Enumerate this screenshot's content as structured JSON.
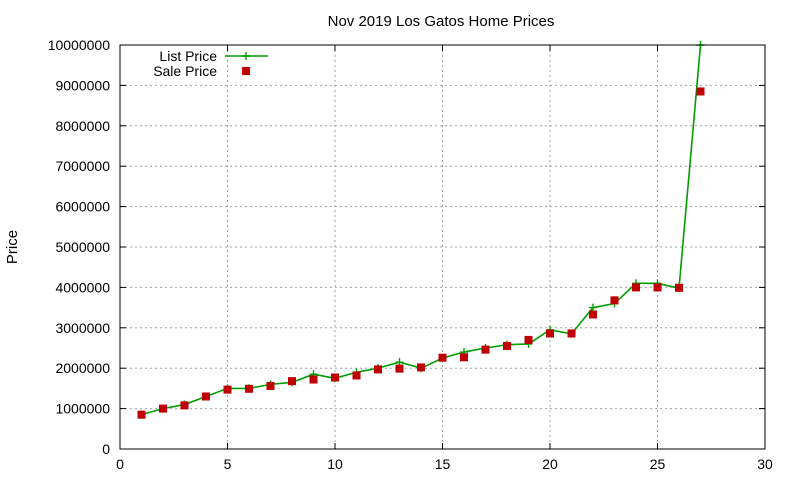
{
  "chart_data": {
    "type": "line",
    "title": "Nov 2019 Los Gatos Home Prices",
    "xlabel": "",
    "ylabel": "Price",
    "xlim": [
      0,
      30
    ],
    "ylim": [
      0,
      10000000
    ],
    "xticks": [
      0,
      5,
      10,
      15,
      20,
      25,
      30
    ],
    "yticks": [
      0,
      1000000,
      2000000,
      3000000,
      4000000,
      5000000,
      6000000,
      7000000,
      8000000,
      9000000,
      10000000
    ],
    "grid": true,
    "legend_position": "top-left",
    "series": [
      {
        "name": "List Price",
        "style": "line-plus",
        "color": "#009e00",
        "x": [
          1,
          2,
          3,
          4,
          5,
          6,
          7,
          8,
          9,
          10,
          11,
          12,
          13,
          14,
          15,
          16,
          17,
          18,
          19,
          20,
          21,
          22,
          23,
          24,
          25,
          26,
          27
        ],
        "values": [
          850000,
          1000000,
          1100000,
          1300000,
          1500000,
          1500000,
          1600000,
          1650000,
          1850000,
          1750000,
          1900000,
          2000000,
          2150000,
          2000000,
          2250000,
          2400000,
          2500000,
          2580000,
          2600000,
          2950000,
          2850000,
          3500000,
          3600000,
          4100000,
          4100000,
          3980000,
          10000000
        ]
      },
      {
        "name": "Sale Price",
        "style": "square",
        "color": "#c00000",
        "x": [
          1,
          2,
          3,
          4,
          5,
          6,
          7,
          8,
          9,
          10,
          11,
          12,
          13,
          14,
          15,
          16,
          17,
          18,
          19,
          20,
          21,
          22,
          23,
          24,
          25,
          26,
          27
        ],
        "values": [
          850000,
          1000000,
          1080000,
          1300000,
          1470000,
          1490000,
          1560000,
          1680000,
          1720000,
          1770000,
          1820000,
          1970000,
          1990000,
          2020000,
          2260000,
          2270000,
          2460000,
          2550000,
          2700000,
          2860000,
          2860000,
          3330000,
          3680000,
          4000000,
          4000000,
          3990000,
          8850000
        ]
      }
    ]
  }
}
